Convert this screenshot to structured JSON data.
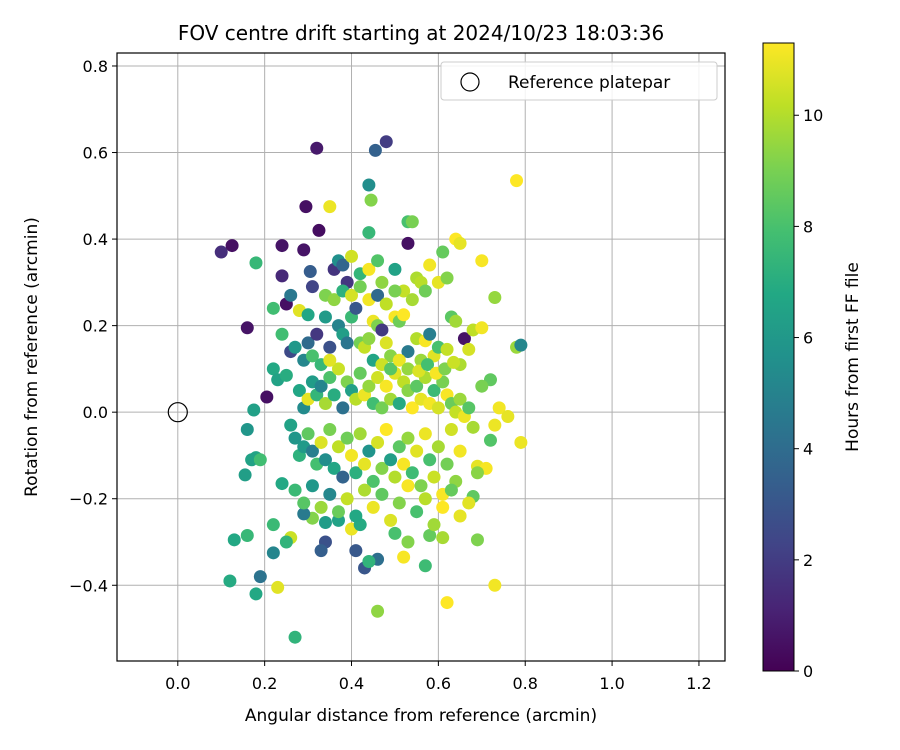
{
  "chart_data": {
    "type": "scatter",
    "title": "FOV centre drift starting at 2024/10/23 18:03:36",
    "xlabel": "Angular distance from reference (arcmin)",
    "ylabel": "Rotation from reference (arcmin)",
    "xlim": [
      -0.14,
      1.26
    ],
    "ylim": [
      -0.575,
      0.83
    ],
    "xticks": [
      "0.0",
      "0.2",
      "0.4",
      "0.6",
      "0.8",
      "1.0",
      "1.2"
    ],
    "yticks": [
      "−0.4",
      "−0.2",
      "0.0",
      "0.2",
      "0.4",
      "0.6",
      "0.8"
    ],
    "grid": true,
    "colormap": "viridis",
    "colorbar": {
      "label": "Hours from first FF file",
      "range": [
        0,
        11.3
      ],
      "ticks": [
        "0",
        "2",
        "4",
        "6",
        "8",
        "10"
      ]
    },
    "legend": {
      "placement": "top-right",
      "entries": [
        "Reference platepar"
      ]
    },
    "reference": {
      "x": 0.0,
      "y": 0.0,
      "label": "Reference platepar"
    },
    "points": [
      [
        0.32,
        0.61,
        0.8
      ],
      [
        0.48,
        0.625,
        2.0
      ],
      [
        0.455,
        0.605,
        3.5
      ],
      [
        0.1,
        0.37,
        1.5
      ],
      [
        0.125,
        0.385,
        0.5
      ],
      [
        0.16,
        0.195,
        0.6
      ],
      [
        0.24,
        0.385,
        0.6
      ],
      [
        0.24,
        0.315,
        1.3
      ],
      [
        0.295,
        0.475,
        0.5
      ],
      [
        0.29,
        0.375,
        0.6
      ],
      [
        0.325,
        0.42,
        0.4
      ],
      [
        0.35,
        0.475,
        11.0
      ],
      [
        0.44,
        0.525,
        5.5
      ],
      [
        0.445,
        0.49,
        9.2
      ],
      [
        0.53,
        0.44,
        8.0
      ],
      [
        0.54,
        0.44,
        9.0
      ],
      [
        0.53,
        0.39,
        0.5
      ],
      [
        0.44,
        0.415,
        7.5
      ],
      [
        0.18,
        0.345,
        7.5
      ],
      [
        0.22,
        0.24,
        7.8
      ],
      [
        0.25,
        0.25,
        0.5
      ],
      [
        0.26,
        0.27,
        4.5
      ],
      [
        0.28,
        0.235,
        10.8
      ],
      [
        0.3,
        0.225,
        6.7
      ],
      [
        0.31,
        0.29,
        2.3
      ],
      [
        0.305,
        0.325,
        3.3
      ],
      [
        0.34,
        0.27,
        9.1
      ],
      [
        0.36,
        0.33,
        1.7
      ],
      [
        0.37,
        0.35,
        5.6
      ],
      [
        0.38,
        0.34,
        3.7
      ],
      [
        0.39,
        0.3,
        1.8
      ],
      [
        0.4,
        0.36,
        10.5
      ],
      [
        0.42,
        0.32,
        7.4
      ],
      [
        0.44,
        0.33,
        11.2
      ],
      [
        0.46,
        0.35,
        8.2
      ],
      [
        0.47,
        0.3,
        9.4
      ],
      [
        0.5,
        0.33,
        6.5
      ],
      [
        0.52,
        0.28,
        10.3
      ],
      [
        0.54,
        0.26,
        9.8
      ],
      [
        0.55,
        0.31,
        9.9
      ],
      [
        0.56,
        0.3,
        10.1
      ],
      [
        0.57,
        0.28,
        8.8
      ],
      [
        0.58,
        0.34,
        11.1
      ],
      [
        0.6,
        0.3,
        10.9
      ],
      [
        0.61,
        0.37,
        8.6
      ],
      [
        0.62,
        0.31,
        9.2
      ],
      [
        0.64,
        0.4,
        11.3
      ],
      [
        0.65,
        0.39,
        10.9
      ],
      [
        0.7,
        0.35,
        11.2
      ],
      [
        0.78,
        0.535,
        11.3
      ],
      [
        0.73,
        0.265,
        9.5
      ],
      [
        0.63,
        0.22,
        8.4
      ],
      [
        0.64,
        0.21,
        9.7
      ],
      [
        0.66,
        0.17,
        0.6
      ],
      [
        0.68,
        0.19,
        10.2
      ],
      [
        0.7,
        0.195,
        11.1
      ],
      [
        0.78,
        0.15,
        9.6
      ],
      [
        0.79,
        0.155,
        5.2
      ],
      [
        0.72,
        0.075,
        8.5
      ],
      [
        0.7,
        0.06,
        9.0
      ],
      [
        0.74,
        0.01,
        11.1
      ],
      [
        0.76,
        -0.01,
        10.9
      ],
      [
        0.73,
        -0.03,
        11.0
      ],
      [
        0.79,
        -0.07,
        11.0
      ],
      [
        0.72,
        -0.065,
        8.2
      ],
      [
        0.68,
        -0.035,
        9.8
      ],
      [
        0.69,
        -0.125,
        10.9
      ],
      [
        0.71,
        -0.13,
        11.2
      ],
      [
        0.69,
        -0.14,
        9.3
      ],
      [
        0.68,
        -0.195,
        8.5
      ],
      [
        0.67,
        -0.21,
        10.8
      ],
      [
        0.73,
        -0.4,
        11.1
      ],
      [
        0.62,
        -0.44,
        11.3
      ],
      [
        0.69,
        -0.295,
        9.1
      ],
      [
        0.61,
        -0.29,
        9.8
      ],
      [
        0.58,
        -0.285,
        8.6
      ],
      [
        0.57,
        -0.355,
        7.7
      ],
      [
        0.52,
        -0.335,
        11.2
      ],
      [
        0.53,
        -0.3,
        9.2
      ],
      [
        0.5,
        -0.28,
        8.0
      ],
      [
        0.46,
        -0.46,
        9.4
      ],
      [
        0.46,
        -0.34,
        4.1
      ],
      [
        0.43,
        -0.36,
        3.0
      ],
      [
        0.44,
        -0.345,
        7.3
      ],
      [
        0.41,
        -0.32,
        3.1
      ],
      [
        0.4,
        -0.27,
        11.0
      ],
      [
        0.42,
        -0.26,
        6.9
      ],
      [
        0.37,
        -0.25,
        6.5
      ],
      [
        0.34,
        -0.3,
        2.8
      ],
      [
        0.33,
        -0.32,
        3.4
      ],
      [
        0.34,
        -0.255,
        6.2
      ],
      [
        0.31,
        -0.245,
        9.2
      ],
      [
        0.29,
        -0.235,
        4.6
      ],
      [
        0.26,
        -0.29,
        10.4
      ],
      [
        0.25,
        -0.3,
        7.3
      ],
      [
        0.24,
        -0.165,
        6.8
      ],
      [
        0.22,
        -0.26,
        7.6
      ],
      [
        0.22,
        -0.325,
        5.1
      ],
      [
        0.19,
        -0.38,
        4.3
      ],
      [
        0.18,
        -0.42,
        6.8
      ],
      [
        0.12,
        -0.39,
        6.9
      ],
      [
        0.16,
        -0.285,
        7.5
      ],
      [
        0.13,
        -0.295,
        6.8
      ],
      [
        0.23,
        -0.405,
        10.8
      ],
      [
        0.27,
        -0.52,
        7.3
      ],
      [
        0.155,
        -0.145,
        6.3
      ],
      [
        0.18,
        -0.105,
        6.6
      ],
      [
        0.17,
        -0.11,
        6.5
      ],
      [
        0.19,
        -0.11,
        7.8
      ],
      [
        0.16,
        -0.04,
        5.9
      ],
      [
        0.175,
        0.005,
        6.4
      ],
      [
        0.205,
        0.035,
        0.5
      ],
      [
        0.22,
        0.1,
        6.8
      ],
      [
        0.23,
        0.075,
        6.5
      ],
      [
        0.25,
        0.085,
        7.0
      ],
      [
        0.24,
        0.18,
        7.8
      ],
      [
        0.26,
        0.14,
        2.5
      ],
      [
        0.27,
        0.15,
        6.0
      ],
      [
        0.29,
        0.12,
        5.2
      ],
      [
        0.3,
        0.16,
        3.9
      ],
      [
        0.31,
        0.13,
        8.0
      ],
      [
        0.32,
        0.18,
        1.8
      ],
      [
        0.34,
        0.22,
        6.1
      ],
      [
        0.35,
        0.15,
        2.8
      ],
      [
        0.37,
        0.2,
        5.0
      ],
      [
        0.38,
        0.18,
        6.3
      ],
      [
        0.39,
        0.16,
        4.4
      ],
      [
        0.4,
        0.22,
        7.6
      ],
      [
        0.41,
        0.24,
        3.1
      ],
      [
        0.42,
        0.16,
        8.9
      ],
      [
        0.43,
        0.15,
        10.3
      ],
      [
        0.44,
        0.17,
        9.4
      ],
      [
        0.45,
        0.21,
        11.0
      ],
      [
        0.46,
        0.2,
        9.1
      ],
      [
        0.47,
        0.19,
        1.9
      ],
      [
        0.48,
        0.16,
        10.7
      ],
      [
        0.49,
        0.13,
        9.3
      ],
      [
        0.5,
        0.22,
        11.2
      ],
      [
        0.51,
        0.21,
        8.8
      ],
      [
        0.52,
        0.225,
        11.3
      ],
      [
        0.53,
        0.14,
        4.6
      ],
      [
        0.55,
        0.17,
        10.0
      ],
      [
        0.56,
        0.12,
        9.6
      ],
      [
        0.57,
        0.165,
        11.2
      ],
      [
        0.58,
        0.18,
        4.8
      ],
      [
        0.59,
        0.13,
        10.8
      ],
      [
        0.6,
        0.15,
        8.0
      ],
      [
        0.62,
        0.145,
        10.3
      ],
      [
        0.65,
        0.11,
        9.9
      ],
      [
        0.67,
        0.145,
        10.6
      ],
      [
        0.28,
        0.05,
        6.7
      ],
      [
        0.29,
        0.01,
        5.4
      ],
      [
        0.3,
        0.03,
        10.9
      ],
      [
        0.31,
        0.07,
        6.2
      ],
      [
        0.32,
        0.04,
        7.4
      ],
      [
        0.33,
        0.06,
        5.1
      ],
      [
        0.34,
        0.02,
        9.8
      ],
      [
        0.35,
        0.08,
        8.1
      ],
      [
        0.36,
        0.04,
        7.0
      ],
      [
        0.37,
        0.1,
        10.4
      ],
      [
        0.38,
        0.01,
        4.2
      ],
      [
        0.39,
        0.07,
        9.1
      ],
      [
        0.4,
        0.05,
        6.4
      ],
      [
        0.41,
        0.03,
        10.1
      ],
      [
        0.42,
        0.09,
        8.6
      ],
      [
        0.43,
        0.04,
        11.0
      ],
      [
        0.44,
        0.06,
        9.5
      ],
      [
        0.45,
        0.02,
        7.8
      ],
      [
        0.46,
        0.08,
        10.5
      ],
      [
        0.47,
        0.01,
        8.9
      ],
      [
        0.48,
        0.06,
        11.2
      ],
      [
        0.49,
        0.03,
        9.7
      ],
      [
        0.5,
        0.09,
        10.8
      ],
      [
        0.51,
        0.02,
        6.9
      ],
      [
        0.52,
        0.07,
        10.2
      ],
      [
        0.53,
        0.05,
        9.3
      ],
      [
        0.54,
        0.01,
        11.3
      ],
      [
        0.55,
        0.06,
        8.4
      ],
      [
        0.56,
        0.03,
        10.9
      ],
      [
        0.57,
        0.08,
        9.9
      ],
      [
        0.58,
        0.02,
        11.1
      ],
      [
        0.59,
        0.05,
        7.6
      ],
      [
        0.6,
        0.01,
        10.6
      ],
      [
        0.61,
        0.07,
        9.0
      ],
      [
        0.62,
        0.04,
        11.2
      ],
      [
        0.63,
        0.02,
        8.7
      ],
      [
        0.64,
        0.0,
        10.3
      ],
      [
        0.65,
        0.03,
        9.6
      ],
      [
        0.66,
        -0.01,
        11.0
      ],
      [
        0.67,
        0.01,
        8.3
      ],
      [
        0.26,
        -0.03,
        6.5
      ],
      [
        0.27,
        -0.06,
        5.9
      ],
      [
        0.28,
        -0.1,
        7.2
      ],
      [
        0.29,
        -0.08,
        6.1
      ],
      [
        0.3,
        -0.05,
        8.5
      ],
      [
        0.31,
        -0.09,
        4.8
      ],
      [
        0.32,
        -0.12,
        7.9
      ],
      [
        0.33,
        -0.07,
        10.7
      ],
      [
        0.34,
        -0.11,
        5.5
      ],
      [
        0.35,
        -0.04,
        9.0
      ],
      [
        0.36,
        -0.13,
        6.7
      ],
      [
        0.37,
        -0.08,
        10.2
      ],
      [
        0.38,
        -0.15,
        3.6
      ],
      [
        0.39,
        -0.06,
        8.8
      ],
      [
        0.4,
        -0.1,
        11.1
      ],
      [
        0.41,
        -0.14,
        7.1
      ],
      [
        0.42,
        -0.05,
        9.7
      ],
      [
        0.43,
        -0.12,
        10.9
      ],
      [
        0.44,
        -0.09,
        5.8
      ],
      [
        0.45,
        -0.16,
        8.1
      ],
      [
        0.46,
        -0.07,
        10.6
      ],
      [
        0.47,
        -0.13,
        9.2
      ],
      [
        0.48,
        -0.04,
        11.3
      ],
      [
        0.49,
        -0.11,
        6.3
      ],
      [
        0.5,
        -0.15,
        10.0
      ],
      [
        0.51,
        -0.08,
        8.4
      ],
      [
        0.52,
        -0.12,
        11.2
      ],
      [
        0.53,
        -0.06,
        9.5
      ],
      [
        0.54,
        -0.14,
        7.7
      ],
      [
        0.55,
        -0.09,
        10.8
      ],
      [
        0.56,
        -0.17,
        9.1
      ],
      [
        0.57,
        -0.05,
        11.0
      ],
      [
        0.58,
        -0.11,
        8.0
      ],
      [
        0.59,
        -0.15,
        10.4
      ],
      [
        0.6,
        -0.08,
        9.8
      ],
      [
        0.61,
        -0.19,
        11.2
      ],
      [
        0.62,
        -0.12,
        8.9
      ],
      [
        0.63,
        -0.04,
        10.5
      ],
      [
        0.64,
        -0.16,
        9.4
      ],
      [
        0.65,
        -0.09,
        11.1
      ],
      [
        0.27,
        -0.18,
        7.6
      ],
      [
        0.29,
        -0.21,
        8.3
      ],
      [
        0.31,
        -0.17,
        6.0
      ],
      [
        0.33,
        -0.22,
        9.6
      ],
      [
        0.35,
        -0.19,
        5.2
      ],
      [
        0.37,
        -0.23,
        8.7
      ],
      [
        0.39,
        -0.2,
        10.3
      ],
      [
        0.41,
        -0.24,
        6.8
      ],
      [
        0.43,
        -0.18,
        9.9
      ],
      [
        0.45,
        -0.22,
        11.0
      ],
      [
        0.47,
        -0.19,
        8.5
      ],
      [
        0.49,
        -0.25,
        10.7
      ],
      [
        0.51,
        -0.21,
        9.2
      ],
      [
        0.53,
        -0.17,
        11.2
      ],
      [
        0.55,
        -0.23,
        8.0
      ],
      [
        0.57,
        -0.2,
        10.1
      ],
      [
        0.59,
        -0.26,
        9.7
      ],
      [
        0.61,
        -0.22,
        11.3
      ],
      [
        0.63,
        -0.18,
        8.6
      ],
      [
        0.65,
        -0.24,
        10.9
      ],
      [
        0.36,
        0.26,
        9.4
      ],
      [
        0.38,
        0.28,
        7.2
      ],
      [
        0.4,
        0.27,
        10.6
      ],
      [
        0.42,
        0.29,
        8.9
      ],
      [
        0.44,
        0.26,
        11.1
      ],
      [
        0.46,
        0.27,
        3.9
      ],
      [
        0.48,
        0.25,
        10.2
      ],
      [
        0.5,
        0.28,
        9.0
      ],
      [
        0.33,
        0.11,
        7.5
      ],
      [
        0.35,
        0.12,
        10.8
      ],
      [
        0.45,
        0.12,
        6.6
      ],
      [
        0.47,
        0.11,
        10.4
      ],
      [
        0.49,
        0.1,
        8.3
      ],
      [
        0.51,
        0.12,
        11.0
      ],
      [
        0.53,
        0.1,
        9.5
      ],
      [
        0.555,
        0.095,
        10.7
      ],
      [
        0.575,
        0.11,
        7.9
      ],
      [
        0.595,
        0.09,
        11.2
      ],
      [
        0.615,
        0.1,
        9.1
      ],
      [
        0.635,
        0.115,
        10.4
      ]
    ]
  }
}
